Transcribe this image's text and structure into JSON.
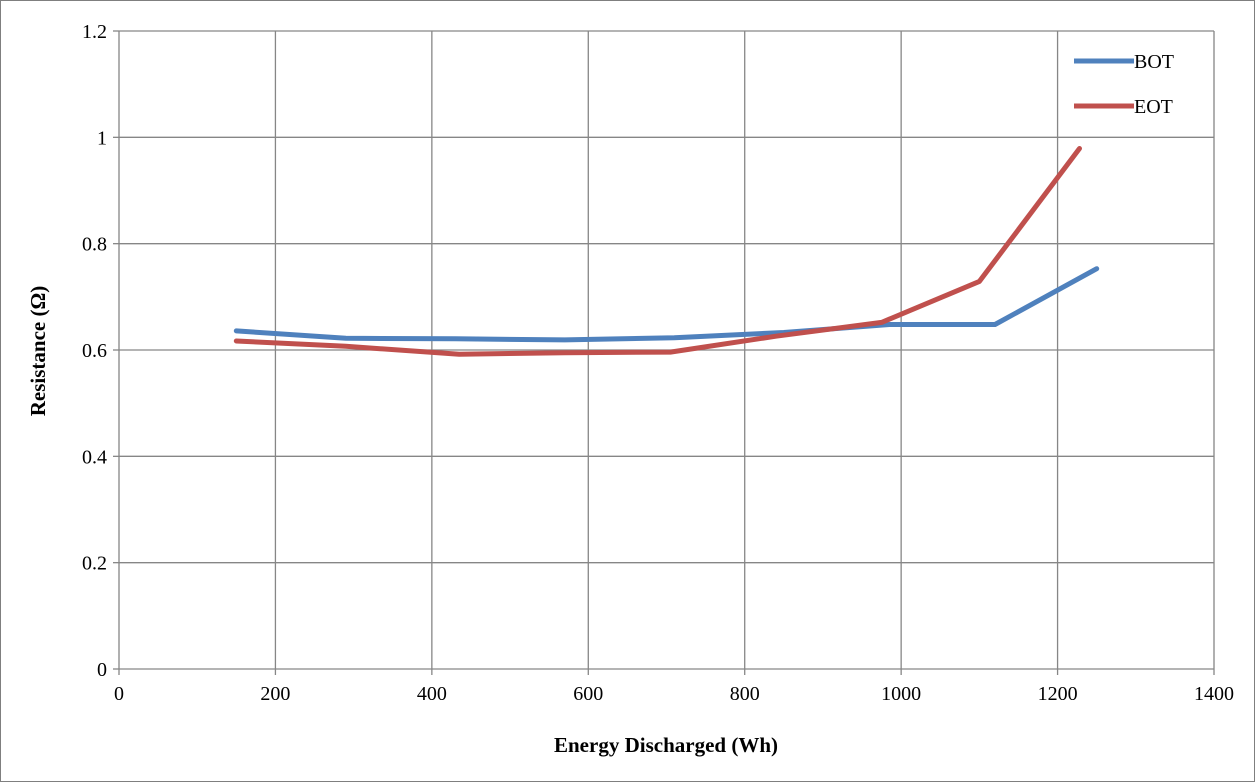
{
  "chart_data": {
    "type": "line",
    "title": "",
    "xlabel": "Energy Discharged (Wh)",
    "ylabel": "Resistance (Ω)",
    "xlim": [
      0,
      1400
    ],
    "ylim": [
      0,
      1.2
    ],
    "x_ticks": [
      "0",
      "200",
      "400",
      "600",
      "800",
      "1000",
      "1200",
      "1400"
    ],
    "y_ticks": [
      "0",
      "0.2",
      "0.4",
      "0.6",
      "0.8",
      "1",
      "1.2"
    ],
    "x_tick_values": [
      0,
      200,
      400,
      600,
      800,
      1000,
      1200,
      1400
    ],
    "y_tick_values": [
      0,
      0.2,
      0.4,
      0.6,
      0.8,
      1.0,
      1.2
    ],
    "grid": true,
    "legend_position": "top-right",
    "series": [
      {
        "name": "BOT",
        "color": "#4f81bd",
        "x": [
          150,
          290,
          430,
          570,
          710,
          850,
          985,
          1120,
          1250
        ],
        "y": [
          0.636,
          0.622,
          0.621,
          0.619,
          0.623,
          0.633,
          0.648,
          0.648,
          0.753
        ]
      },
      {
        "name": "EOT",
        "color": "#c0504d",
        "x": [
          150,
          290,
          435,
          570,
          705,
          840,
          975,
          1100,
          1228
        ],
        "y": [
          0.617,
          0.607,
          0.592,
          0.595,
          0.596,
          0.626,
          0.652,
          0.729,
          0.979
        ]
      }
    ]
  }
}
